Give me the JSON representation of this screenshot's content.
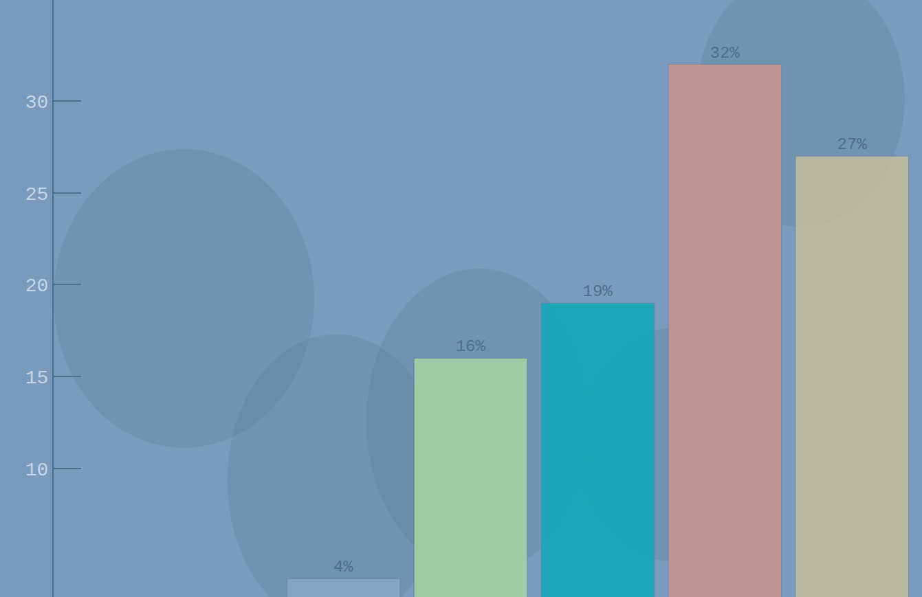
{
  "chart_data": {
    "type": "bar",
    "categories": [
      null,
      null,
      null,
      null,
      null
    ],
    "values": [
      4,
      16,
      19,
      32,
      27
    ],
    "value_labels": [
      "4%",
      "16%",
      "19%",
      "32%",
      "27%"
    ],
    "colors": [
      "#8aa6c2",
      "#a9d3a4",
      "#10a9bb",
      "#c9978f",
      "#c2bf9c"
    ],
    "ylim": [
      3,
      35.5
    ],
    "yticks": [
      10,
      15,
      20,
      25,
      30
    ],
    "grid": false,
    "data_labels": true,
    "tick_labels": "y"
  }
}
